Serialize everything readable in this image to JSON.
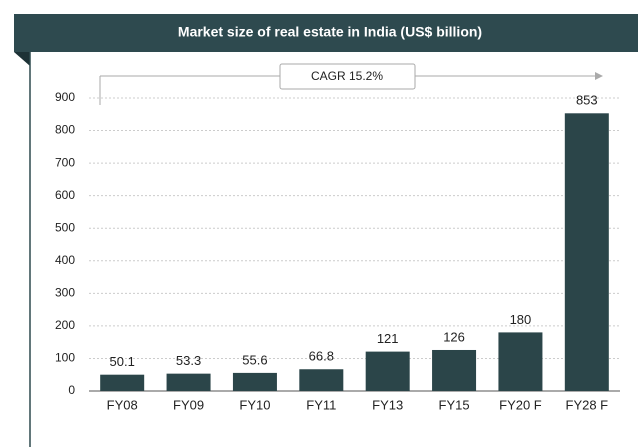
{
  "chart_data": {
    "type": "bar",
    "title": "Market size of real estate in India (US$ billion)",
    "categories": [
      "FY08",
      "FY09",
      "FY10",
      "FY11",
      "FY13",
      "FY15",
      "FY20 F",
      "FY28 F"
    ],
    "values": [
      50.1,
      53.3,
      55.6,
      66.8,
      121,
      126,
      180,
      853
    ],
    "color": "#2b4549",
    "ylim": [
      0,
      900
    ],
    "yticks": [
      0,
      100,
      200,
      300,
      400,
      500,
      600,
      700,
      800,
      900
    ],
    "grid": true,
    "annotation": "CAGR 15.2%"
  }
}
